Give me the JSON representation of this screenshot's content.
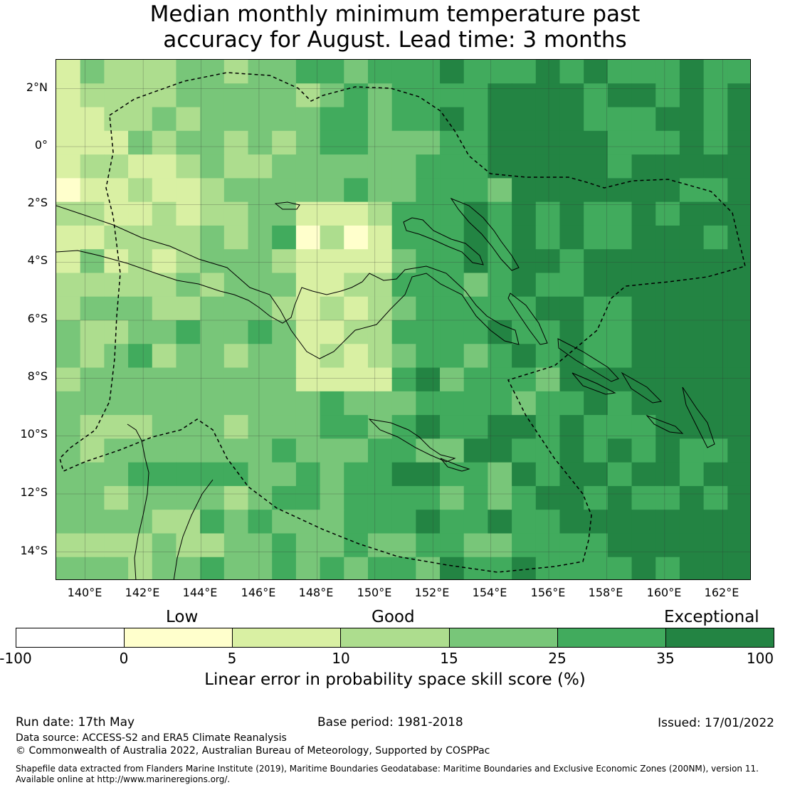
{
  "title": {
    "line1": "Median monthly minimum temperature past",
    "line2": "accuracy for August. Lead time: 3 months"
  },
  "map": {
    "lat_ticks": [
      "2°N",
      "0°",
      "2°S",
      "4°S",
      "6°S",
      "8°S",
      "10°S",
      "12°S",
      "14°S"
    ],
    "lon_ticks": [
      "140°E",
      "142°E",
      "144°E",
      "146°E",
      "148°E",
      "150°E",
      "152°E",
      "154°E",
      "156°E",
      "158°E",
      "160°E",
      "162°E"
    ],
    "extent": {
      "lon_min": 139,
      "lon_max": 163,
      "lat_min": -15,
      "lat_max": 3
    },
    "eez_boundary": "Papua New Guinea exclusive economic zone (dashed)",
    "color_classes": {
      "-100_0": "#ffffff",
      "0_5": "#ffffcc",
      "5_10": "#d9f0a3",
      "10_15": "#addd8e",
      "15_25": "#78c679",
      "25_35": "#41ab5d",
      "35_100": "#238443"
    }
  },
  "colorbar": {
    "categories": [
      "Low",
      "Good",
      "Exceptional"
    ],
    "ticks": [
      "-100",
      "0",
      "5",
      "10",
      "15",
      "25",
      "35",
      "100"
    ],
    "colors": [
      "#ffffff",
      "#ffffcc",
      "#d9f0a3",
      "#addd8e",
      "#78c679",
      "#41ab5d",
      "#238443"
    ],
    "label": "Linear error in probability space skill score (%)"
  },
  "footer": {
    "run_date": "Run date: 17th May",
    "base_period": "Base period: 1981-2018",
    "issued": "Issued: 17/01/2022",
    "data_source": "Data source: ACCESS-S2 and ERA5 Climate Reanalysis",
    "copyright": "© Commonwealth of Australia 2022, Australian Bureau of Meteorology, Supported by COSPPac",
    "shapefile_line1": "Shapefile data extracted from Flanders Marine Institute (2019), Maritime Boundaries Geodatabase: Maritime Boundaries and Exclusive Economic Zones (200NM), version 11.",
    "shapefile_line2": "Available online at http://www.marineregions.org/."
  }
}
